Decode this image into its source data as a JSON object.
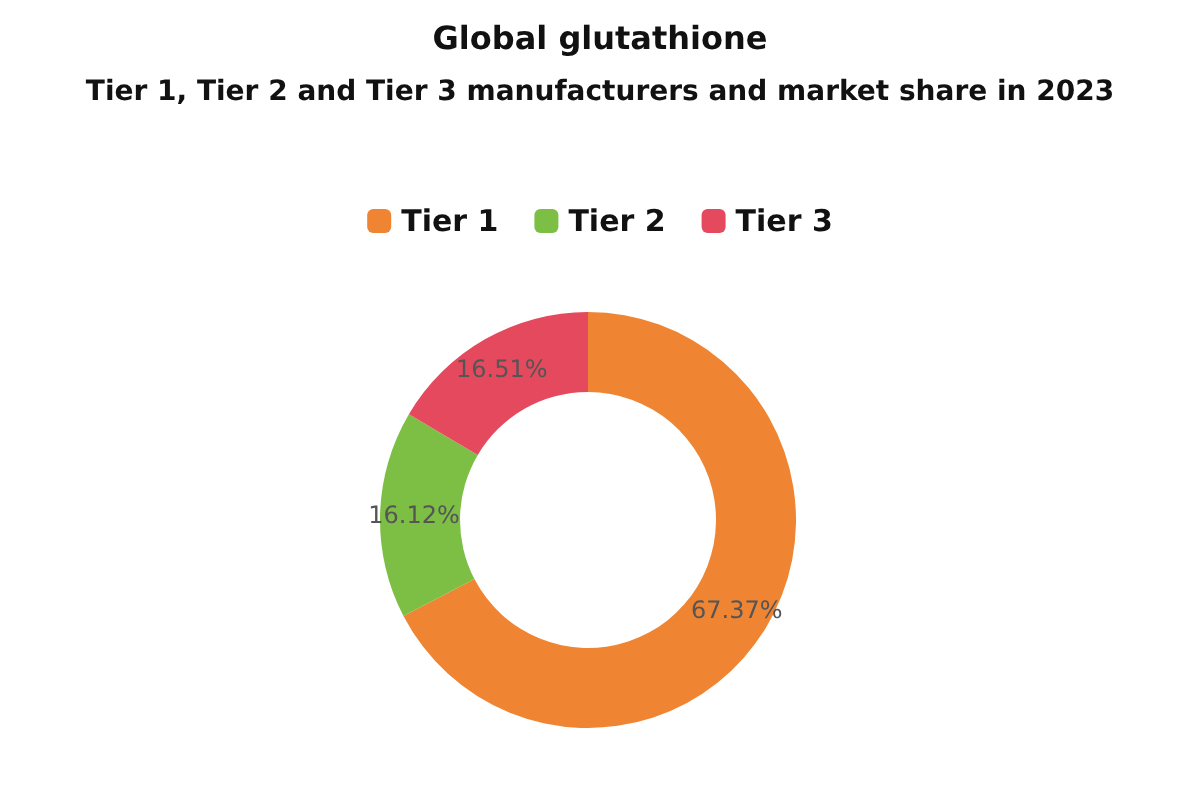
{
  "chart_data": {
    "type": "donut",
    "title": "Global glutathione",
    "subtitle": "Tier 1, Tier 2 and Tier 3 manufacturers and market share in 2023",
    "categories": [
      "Tier 1",
      "Tier 2",
      "Tier 3"
    ],
    "values": [
      67.37,
      16.12,
      16.51
    ],
    "value_labels": [
      "67.37%",
      "16.12%",
      "16.51%"
    ],
    "colors": [
      "#ef8532",
      "#7dbf45",
      "#e4495e"
    ],
    "legend": "top"
  }
}
